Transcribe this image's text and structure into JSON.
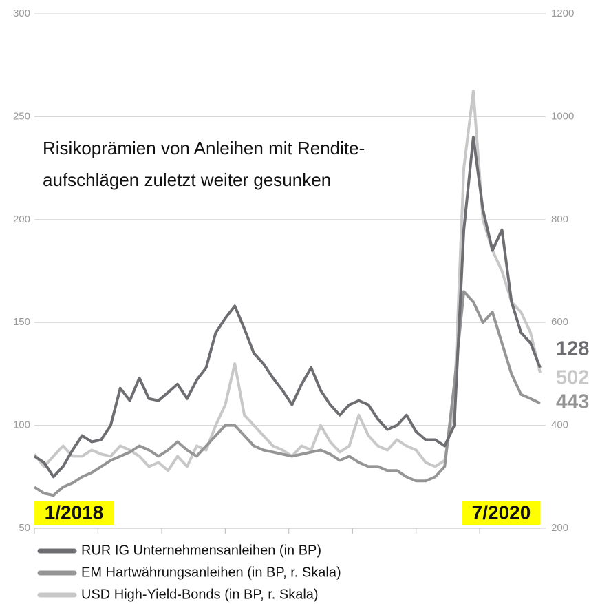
{
  "chart_data": {
    "type": "line",
    "title": [
      "Risikoprämien von Anleihen mit Rendite-",
      "aufschlägen zuletzt weiter gesunken"
    ],
    "annotations": [
      "1/2018",
      "7/2020"
    ],
    "x": [
      2018.0,
      2018.05,
      2018.1,
      2018.15,
      2018.2,
      2018.25,
      2018.3,
      2018.35,
      2018.4,
      2018.45,
      2018.5,
      2018.55,
      2018.6,
      2018.65,
      2018.7,
      2018.75,
      2018.8,
      2018.85,
      2018.9,
      2018.95,
      2019.0,
      2019.05,
      2019.1,
      2019.15,
      2019.2,
      2019.25,
      2019.3,
      2019.35,
      2019.4,
      2019.45,
      2019.5,
      2019.55,
      2019.6,
      2019.65,
      2019.7,
      2019.75,
      2019.8,
      2019.85,
      2019.9,
      2019.95,
      2020.0,
      2020.05,
      2020.1,
      2020.15,
      2020.2,
      2020.25,
      2020.3,
      2020.35,
      2020.4,
      2020.45,
      2020.5,
      2020.55,
      2020.6,
      2020.65
    ],
    "xlim": [
      2018,
      2020.65
    ],
    "xticks": [
      2018,
      2018.333,
      2018.667,
      2019,
      2019.333,
      2019.667,
      2020,
      2020.333
    ],
    "ylim": [
      50,
      300
    ],
    "yticks": [
      50,
      100,
      150,
      200,
      250,
      300
    ],
    "y2lim": [
      200,
      1200
    ],
    "y2ticks": [
      200,
      400,
      600,
      800,
      1000,
      1200
    ],
    "grid": true,
    "series": [
      {
        "name": "RUR IG Unternehmensanleihen (in BP)",
        "color": "#6e6e72",
        "axis": "y",
        "values": [
          85,
          82,
          75,
          80,
          88,
          95,
          92,
          93,
          100,
          118,
          112,
          123,
          113,
          112,
          116,
          120,
          113,
          122,
          128,
          145,
          152,
          158,
          147,
          135,
          130,
          123,
          117,
          110,
          120,
          128,
          117,
          110,
          105,
          110,
          112,
          110,
          103,
          98,
          100,
          105,
          97,
          93,
          93,
          90,
          100,
          195,
          240,
          205,
          185,
          195,
          160,
          145,
          140,
          128
        ]
      },
      {
        "name": "EM Hartwährungsanleihen (in BP, r. Skala)",
        "color": "#959595",
        "axis": "y2",
        "values": [
          280,
          268,
          264,
          280,
          288,
          300,
          308,
          320,
          332,
          340,
          348,
          360,
          352,
          340,
          352,
          368,
          352,
          340,
          360,
          380,
          400,
          400,
          380,
          360,
          352,
          348,
          344,
          340,
          344,
          348,
          352,
          344,
          332,
          340,
          328,
          320,
          320,
          312,
          312,
          300,
          292,
          292,
          300,
          320,
          480,
          660,
          640,
          600,
          620,
          560,
          500,
          460,
          452,
          443
        ]
      },
      {
        "name": "USD High-Yield-Bonds (in BP, r. Skala)",
        "color": "#c8c8c8",
        "axis": "y2",
        "values": [
          344,
          320,
          340,
          360,
          340,
          340,
          352,
          344,
          340,
          360,
          352,
          340,
          320,
          328,
          312,
          340,
          320,
          360,
          352,
          400,
          440,
          520,
          420,
          400,
          380,
          360,
          352,
          340,
          360,
          352,
          400,
          368,
          348,
          360,
          420,
          380,
          360,
          352,
          372,
          360,
          352,
          328,
          320,
          332,
          440,
          900,
          1050,
          800,
          740,
          700,
          640,
          620,
          580,
          502
        ]
      }
    ]
  }
}
